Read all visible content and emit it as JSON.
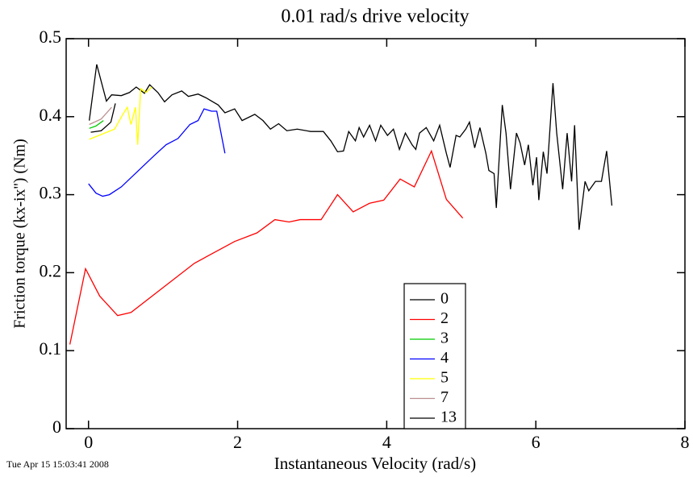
{
  "chart_data": {
    "type": "line",
    "title": "0.01 rad/s drive velocity",
    "x_label": "Instantaneous Velocity (rad/s)",
    "y_label": "Friction torque (kx-ix'') (Nm)",
    "timestamp": "Tue Apr 15 15:03:41 2008",
    "xlim": [
      -0.3,
      8
    ],
    "xticks": [
      0,
      2,
      4,
      6,
      8
    ],
    "ylim": [
      0,
      0.5
    ],
    "yticks": [
      0,
      0.1,
      0.2,
      0.3,
      0.4,
      0.5
    ],
    "series": [
      {
        "name": "0",
        "color": "#000000",
        "x": [
          0.01,
          0.11,
          0.24,
          0.31,
          0.44,
          0.55,
          0.64,
          0.75,
          0.82,
          0.93,
          1.02,
          1.12,
          1.25,
          1.34,
          1.47,
          1.58,
          1.65,
          1.74,
          1.83,
          1.96,
          2.06,
          2.23,
          2.34,
          2.44,
          2.55,
          2.66,
          2.8,
          2.98,
          3.15,
          3.25,
          3.34,
          3.42,
          3.49,
          3.58,
          3.63,
          3.69,
          3.77,
          3.85,
          3.92,
          4.01,
          4.09,
          4.17,
          4.25,
          4.34,
          4.39,
          4.44,
          4.53,
          4.63,
          4.71,
          4.8,
          4.85,
          4.93,
          4.98,
          5.06,
          5.11,
          5.18,
          5.25,
          5.33,
          5.37,
          5.44,
          5.47,
          5.55,
          5.6,
          5.66,
          5.74,
          5.79,
          5.85,
          5.9,
          5.96,
          6.01,
          6.04,
          6.1,
          6.15,
          6.23,
          6.28,
          6.36,
          6.42,
          6.48,
          6.52,
          6.58,
          6.66,
          6.71,
          6.8,
          6.88,
          6.95,
          7.02
        ],
        "values": [
          0.395,
          0.467,
          0.42,
          0.428,
          0.427,
          0.431,
          0.438,
          0.43,
          0.441,
          0.431,
          0.419,
          0.428,
          0.433,
          0.426,
          0.429,
          0.424,
          0.42,
          0.415,
          0.405,
          0.41,
          0.395,
          0.403,
          0.395,
          0.384,
          0.391,
          0.382,
          0.384,
          0.381,
          0.381,
          0.369,
          0.355,
          0.356,
          0.381,
          0.369,
          0.386,
          0.374,
          0.389,
          0.369,
          0.389,
          0.376,
          0.384,
          0.358,
          0.379,
          0.364,
          0.358,
          0.379,
          0.386,
          0.369,
          0.389,
          0.353,
          0.335,
          0.376,
          0.374,
          0.384,
          0.393,
          0.36,
          0.386,
          0.353,
          0.331,
          0.327,
          0.283,
          0.415,
          0.379,
          0.307,
          0.379,
          0.366,
          0.338,
          0.364,
          0.312,
          0.348,
          0.293,
          0.355,
          0.327,
          0.443,
          0.379,
          0.307,
          0.379,
          0.317,
          0.389,
          0.255,
          0.317,
          0.305,
          0.317,
          0.317,
          0.356,
          0.286
        ]
      },
      {
        "name": "2",
        "color": "#ff0000",
        "x": [
          -0.25,
          -0.04,
          0.15,
          0.39,
          0.57,
          1.42,
          1.65,
          1.96,
          2.26,
          2.5,
          2.69,
          2.84,
          3.12,
          3.34,
          3.55,
          3.77,
          3.96,
          4.18,
          4.37,
          4.6,
          4.8,
          5.02
        ],
        "values": [
          0.108,
          0.205,
          0.17,
          0.145,
          0.149,
          0.212,
          0.224,
          0.24,
          0.251,
          0.268,
          0.265,
          0.268,
          0.268,
          0.3,
          0.278,
          0.289,
          0.293,
          0.32,
          0.31,
          0.356,
          0.294,
          0.27
        ]
      },
      {
        "name": "3",
        "color": "#00cc00",
        "x": [
          0.01,
          0.1,
          0.2
        ],
        "values": [
          0.385,
          0.388,
          0.395
        ]
      },
      {
        "name": "4",
        "color": "#0000ff",
        "x": [
          0,
          0.1,
          0.19,
          0.28,
          0.44,
          0.66,
          0.88,
          1.04,
          1.2,
          1.36,
          1.47,
          1.55,
          1.65,
          1.72,
          1.83
        ],
        "values": [
          0.314,
          0.302,
          0.298,
          0.3,
          0.31,
          0.33,
          0.35,
          0.364,
          0.372,
          0.39,
          0.395,
          0.41,
          0.407,
          0.407,
          0.353
        ]
      },
      {
        "name": "5",
        "color": "#ffff00",
        "x": [
          0.01,
          0.35,
          0.46,
          0.52,
          0.57,
          0.63,
          0.66,
          0.7,
          0.77,
          0.85
        ],
        "values": [
          0.371,
          0.384,
          0.403,
          0.412,
          0.39,
          0.412,
          0.364,
          0.436,
          0.431,
          0.438
        ]
      },
      {
        "name": "7",
        "color": "#bc8f8f",
        "x": [
          0.01,
          0.17,
          0.31
        ],
        "values": [
          0.39,
          0.397,
          0.412
        ]
      },
      {
        "name": "13",
        "color": "#000000",
        "x": [
          0.03,
          0.17,
          0.3,
          0.36
        ],
        "values": [
          0.38,
          0.382,
          0.393,
          0.417
        ]
      }
    ]
  }
}
